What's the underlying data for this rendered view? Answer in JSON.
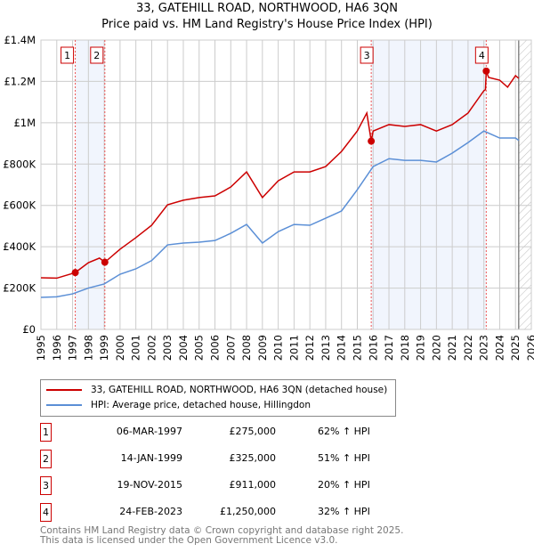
{
  "chart_data": {
    "type": "line",
    "title": "33, GATEHILL ROAD, NORTHWOOD, HA6 3QN",
    "subtitle": "Price paid vs. HM Land Registry's House Price Index (HPI)",
    "xlim": [
      1995,
      2026
    ],
    "ylim": [
      0,
      1400000
    ],
    "x_ticks": [
      "1995",
      "1996",
      "1997",
      "1998",
      "1999",
      "2000",
      "2001",
      "2002",
      "2003",
      "2004",
      "2005",
      "2006",
      "2007",
      "2008",
      "2009",
      "2010",
      "2011",
      "2012",
      "2013",
      "2014",
      "2015",
      "2016",
      "2017",
      "2018",
      "2019",
      "2020",
      "2021",
      "2022",
      "2023",
      "2024",
      "2025",
      "2026"
    ],
    "y_ticks": [
      {
        "v": 0,
        "label": "£0"
      },
      {
        "v": 200000,
        "label": "£200K"
      },
      {
        "v": 400000,
        "label": "£400K"
      },
      {
        "v": 600000,
        "label": "£600K"
      },
      {
        "v": 800000,
        "label": "£800K"
      },
      {
        "v": 1000000,
        "label": "£1M"
      },
      {
        "v": 1200000,
        "label": "£1.2M"
      },
      {
        "v": 1400000,
        "label": "£1.4M"
      }
    ],
    "grid": true,
    "forecast_hatch_from": 2025.2,
    "shaded_periods": [
      [
        1997.17,
        1999.04
      ],
      [
        2015.88,
        2023.15
      ]
    ],
    "series": [
      {
        "name": "33, GATEHILL ROAD, NORTHWOOD, HA6 3QN (detached house)",
        "color": "#cc0000",
        "x": [
          1995,
          1996,
          1997.17,
          1998,
          1998.7,
          1999.04,
          2000,
          2001,
          2002,
          2003,
          2004,
          2005,
          2006,
          2007,
          2008,
          2009,
          2010,
          2011,
          2012,
          2013,
          2014,
          2015,
          2015.6,
          2015.88,
          2016,
          2017,
          2018,
          2019,
          2020,
          2021,
          2022,
          2023,
          2023.1,
          2023.15,
          2023.3,
          2024,
          2024.5,
          2025,
          2025.2
        ],
        "y": [
          250000,
          248000,
          275000,
          323000,
          345000,
          325000,
          388000,
          444000,
          504000,
          603000,
          625000,
          638000,
          646000,
          689000,
          762000,
          638000,
          719000,
          762000,
          762000,
          788000,
          861000,
          960000,
          1047000,
          911000,
          960000,
          991000,
          982000,
          991000,
          960000,
          991000,
          1047000,
          1155000,
          1160000,
          1250000,
          1219000,
          1206000,
          1172000,
          1228000,
          1215000
        ]
      },
      {
        "name": "HPI: Average price, detached house, Hillingdon",
        "color": "#5b8fd6",
        "x": [
          1995,
          1996,
          1997,
          1998,
          1999,
          2000,
          2001,
          2002,
          2003,
          2004,
          2005,
          2006,
          2007,
          2008,
          2009,
          2010,
          2011,
          2012,
          2013,
          2014,
          2015,
          2016,
          2017,
          2018,
          2019,
          2020,
          2021,
          2022,
          2023,
          2024,
          2025,
          2025.2
        ],
        "y": [
          155000,
          158000,
          172000,
          200000,
          220000,
          267000,
          293000,
          333000,
          409000,
          418000,
          422000,
          430000,
          465000,
          508000,
          418000,
          473000,
          508000,
          504000,
          538000,
          573000,
          676000,
          788000,
          826000,
          818000,
          818000,
          810000,
          853000,
          904000,
          960000,
          926000,
          926000,
          915000
        ]
      }
    ],
    "sales": [
      {
        "n": "1",
        "x": 1997.17,
        "y": 275000,
        "date": "06-MAR-1997",
        "price": "£275,000",
        "hpi": "62% ↑ HPI"
      },
      {
        "n": "2",
        "x": 1999.04,
        "y": 325000,
        "date": "14-JAN-1999",
        "price": "£325,000",
        "hpi": "51% ↑ HPI"
      },
      {
        "n": "3",
        "x": 2015.88,
        "y": 911000,
        "date": "19-NOV-2015",
        "price": "£911,000",
        "hpi": "20% ↑ HPI"
      },
      {
        "n": "4",
        "x": 2023.15,
        "y": 1250000,
        "date": "24-FEB-2023",
        "price": "£1,250,000",
        "hpi": "32% ↑ HPI"
      }
    ]
  },
  "footer": {
    "line1": "Contains HM Land Registry data © Crown copyright and database right 2025.",
    "line2": "This data is licensed under the Open Government Licence v3.0."
  }
}
